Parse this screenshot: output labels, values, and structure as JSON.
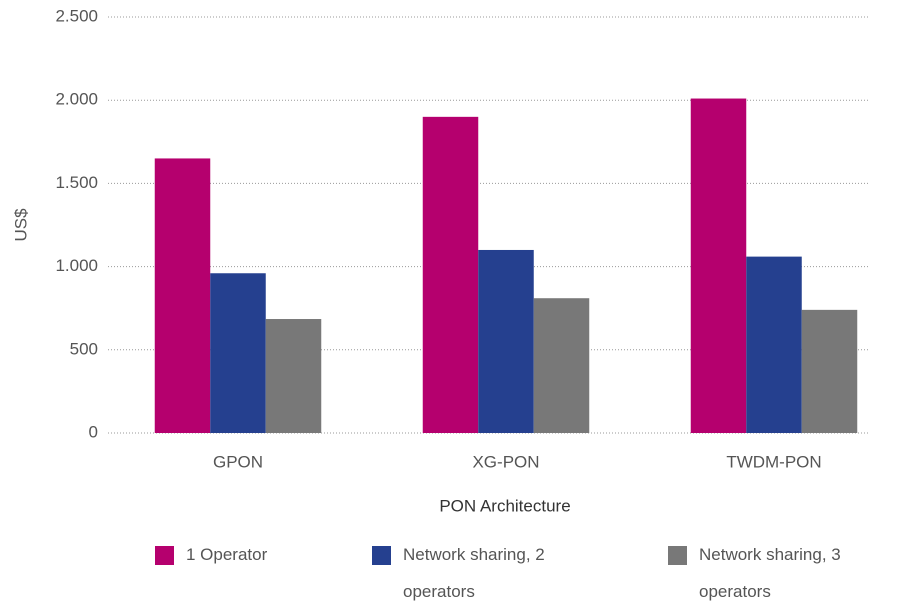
{
  "chart_data": {
    "type": "bar",
    "ylabel": "US$",
    "xlabel": "PON Architecture",
    "categories": [
      "GPON",
      "XG-PON",
      "TWDM-PON"
    ],
    "series": [
      {
        "name": "1 Operator",
        "color": "#b5006e",
        "values": [
          1650,
          1900,
          2010
        ]
      },
      {
        "name": "Network sharing, 2 operators",
        "color": "#25408f",
        "values": [
          960,
          1100,
          1060
        ]
      },
      {
        "name": "Network sharing, 3 operators",
        "color": "#787878",
        "values": [
          685,
          810,
          740
        ]
      }
    ],
    "ylim": [
      0,
      2500
    ],
    "yticks": [
      0,
      500,
      {
        "value": 1000,
        "label": "1.000"
      },
      {
        "value": 1500,
        "label": "1.500"
      },
      {
        "value": 2000,
        "label": "2.000"
      },
      {
        "value": 2500,
        "label": "2.500"
      }
    ],
    "grid": true,
    "legend": "bottom"
  }
}
